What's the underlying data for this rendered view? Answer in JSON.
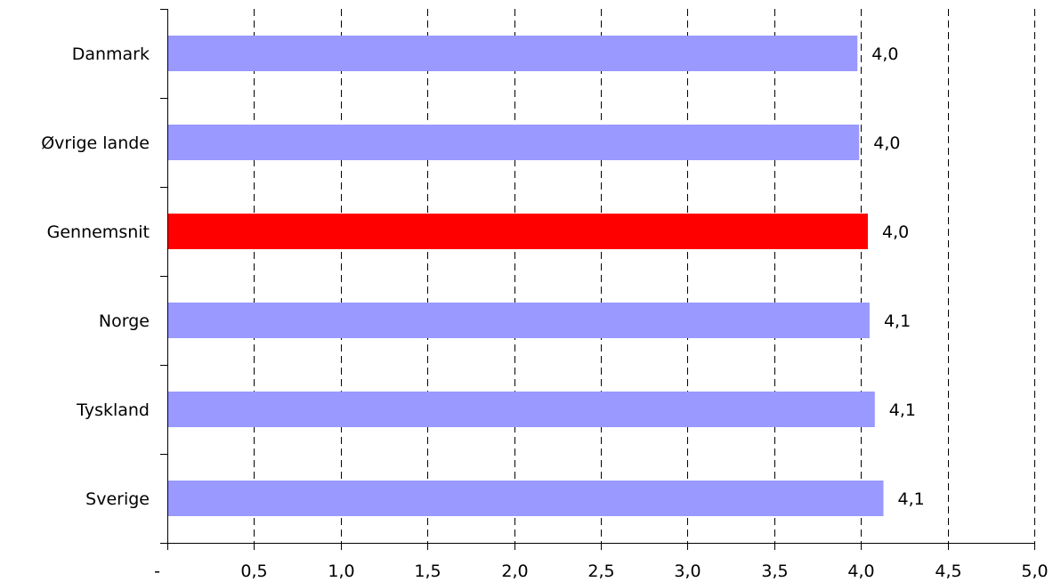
{
  "chart_data": {
    "type": "bar",
    "orientation": "horizontal",
    "categories": [
      "Danmark",
      "Øvrige lande",
      "Gennemsnit",
      "Norge",
      "Tyskland",
      "Sverige"
    ],
    "values": [
      3.98,
      3.99,
      4.04,
      4.05,
      4.08,
      4.13
    ],
    "value_labels": [
      "4,0",
      "4,0",
      "4,0",
      "4,1",
      "4,1",
      "4,1"
    ],
    "colors": [
      "#9999ff",
      "#9999ff",
      "#ff0000",
      "#9999ff",
      "#9999ff",
      "#9999ff"
    ],
    "xlim": [
      0,
      5
    ],
    "x_ticks": [
      0,
      0.5,
      1,
      1.5,
      2,
      2.5,
      3,
      3.5,
      4,
      4.5,
      5
    ],
    "x_tick_labels": [
      "-",
      "0,5",
      "1,0",
      "1,5",
      "2,0",
      "2,5",
      "3,0",
      "3,5",
      "4,0",
      "4,5",
      "5,0"
    ],
    "grid": "vertical dashed",
    "legend": "none"
  }
}
